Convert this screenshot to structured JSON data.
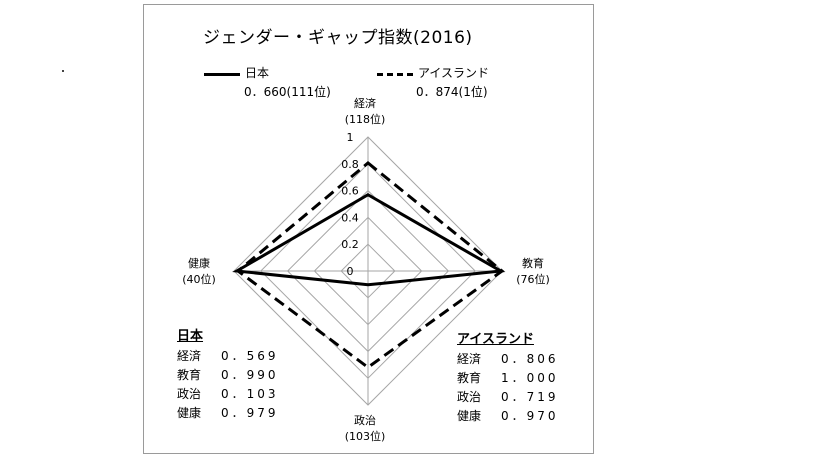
{
  "chart_data": {
    "type": "radar",
    "title": "ジェンダー・ギャップ指数(2016)",
    "axes": [
      {
        "key": "economy",
        "label": "経済",
        "rank": "(118位)"
      },
      {
        "key": "education",
        "label": "教育",
        "rank": "(76位)"
      },
      {
        "key": "politics",
        "label": "政治",
        "rank": "(103位)"
      },
      {
        "key": "health",
        "label": "健康",
        "rank": "(40位)"
      }
    ],
    "rlim": [
      0,
      1
    ],
    "ticks": [
      "0",
      "0.2",
      "0.4",
      "0.6",
      "0.8",
      "1"
    ],
    "tick_values": [
      0,
      0.2,
      0.4,
      0.6,
      0.8,
      1.0
    ],
    "series": [
      {
        "name": "日本",
        "summary": "0．660(111位)",
        "style": "solid",
        "values": [
          0.569,
          0.99,
          0.103,
          0.979
        ],
        "display": [
          "0．569",
          "0．990",
          "0．103",
          "0．979"
        ]
      },
      {
        "name": "アイスランド",
        "summary": "0．874(1位)",
        "style": "dashed",
        "values": [
          0.806,
          1.0,
          0.719,
          0.97
        ],
        "display": [
          "0．806",
          "1．000",
          "0．719",
          "0．970"
        ]
      }
    ],
    "grid": true,
    "legend_position": "top"
  },
  "panels": {
    "japan": {
      "title": "日本",
      "rows": [
        {
          "label": "経済",
          "value": "0．569"
        },
        {
          "label": "教育",
          "value": "0．990"
        },
        {
          "label": "政治",
          "value": "0．103"
        },
        {
          "label": "健康",
          "value": "0．979"
        }
      ]
    },
    "iceland": {
      "title": "アイスランド",
      "rows": [
        {
          "label": "経済",
          "value": "0．806"
        },
        {
          "label": "教育",
          "value": "1．000"
        },
        {
          "label": "政治",
          "value": "0．719"
        },
        {
          "label": "健康",
          "value": "0．970"
        }
      ]
    }
  }
}
